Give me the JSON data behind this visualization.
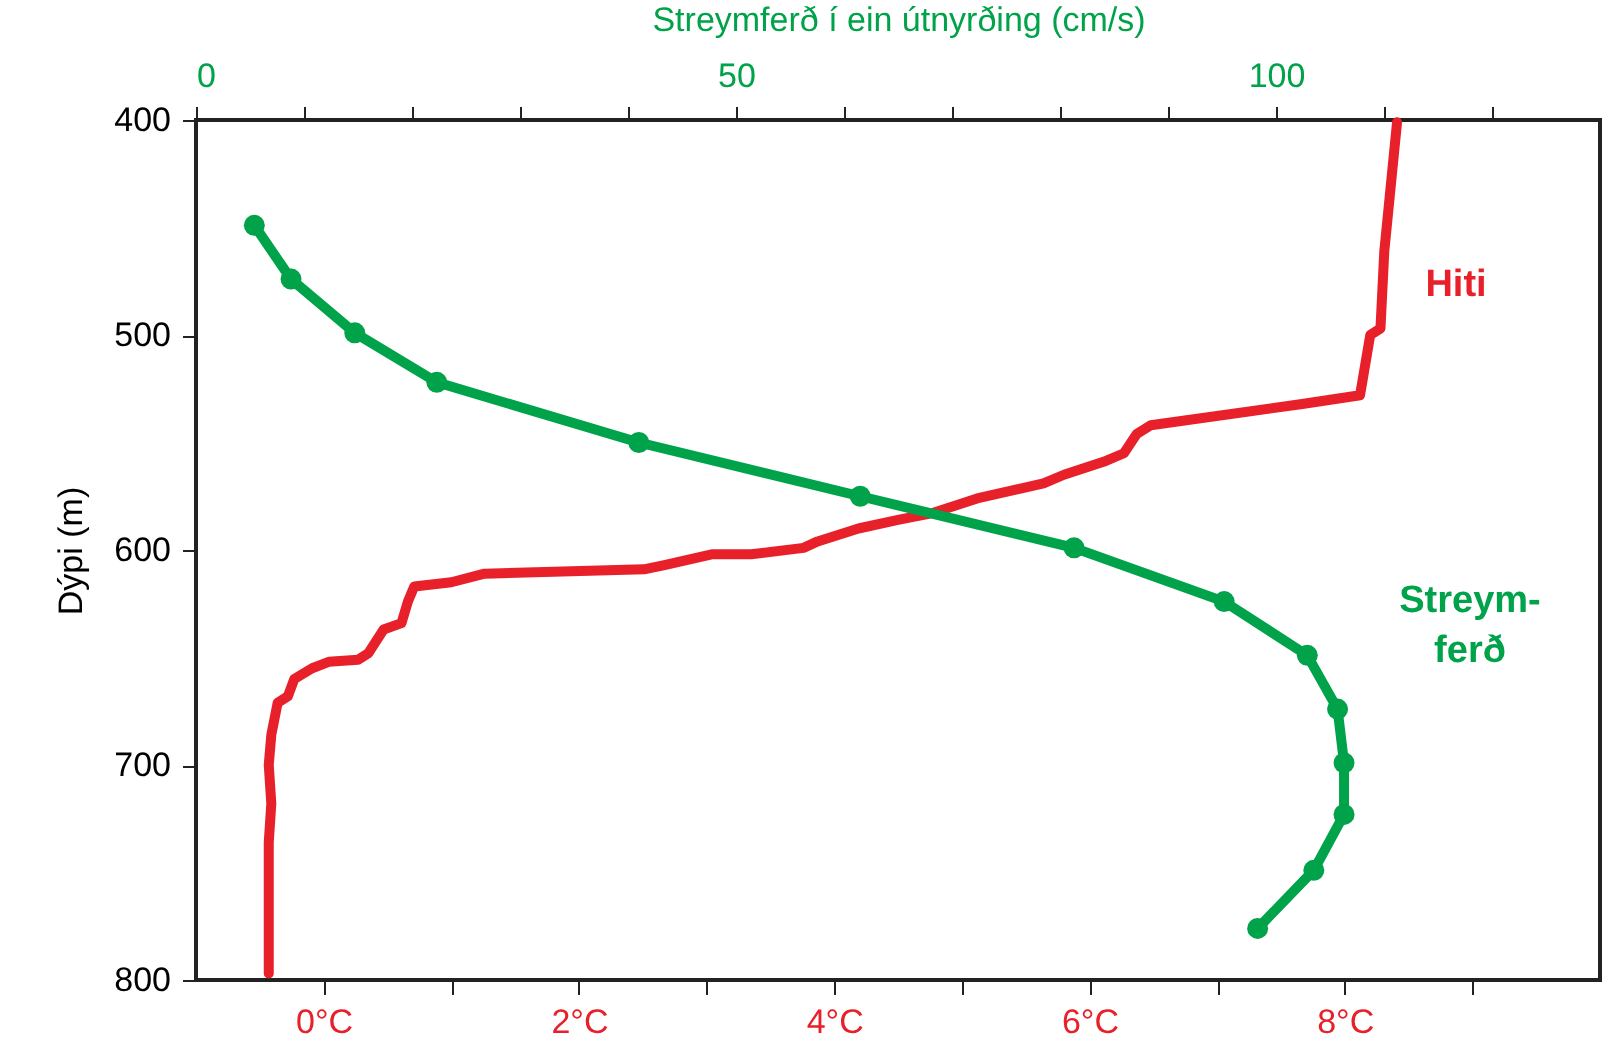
{
  "chart_data": {
    "type": "line",
    "ylabel": "Dýpi (m)",
    "x2label": "Streymferð í ein útnyrðing (cm/s)",
    "ylim": [
      800,
      400
    ],
    "yticks": [
      400,
      500,
      600,
      700,
      800
    ],
    "xlim": [
      -1,
      10
    ],
    "xticks": [
      {
        "value": 0,
        "label": "0°C"
      },
      {
        "value": 1,
        "label": null
      },
      {
        "value": 2,
        "label": "2°C"
      },
      {
        "value": 3,
        "label": null
      },
      {
        "value": 4,
        "label": "4°C"
      },
      {
        "value": 5,
        "label": null
      },
      {
        "value": 6,
        "label": "6°C"
      },
      {
        "value": 7,
        "label": null
      },
      {
        "value": 8,
        "label": "8°C"
      },
      {
        "value": 9,
        "label": null
      }
    ],
    "x2lim": [
      0,
      130
    ],
    "x2ticks": [
      0,
      {
        "value": 10,
        "label": null
      },
      {
        "value": 20,
        "label": null
      },
      {
        "value": 30,
        "label": null
      },
      {
        "value": 40,
        "label": null
      },
      50,
      {
        "value": 60,
        "label": null
      },
      {
        "value": 70,
        "label": null
      },
      {
        "value": 80,
        "label": null
      },
      {
        "value": 90,
        "label": null
      },
      100,
      {
        "value": 110,
        "label": null
      },
      {
        "value": 120,
        "label": null
      }
    ],
    "grid": false,
    "legend": false,
    "line_style": "solid",
    "series": [
      {
        "name": "Hiti",
        "color": "#e8202a",
        "marker": "none",
        "x": [
          8.41,
          8.31,
          8.28,
          8.2,
          8.12,
          7.68,
          6.48,
          6.37,
          6.27,
          6.11,
          5.8,
          5.64,
          5.12,
          4.76,
          4.5,
          4.19,
          3.87,
          3.76,
          3.35,
          3.04,
          2.67,
          2.51,
          1.26,
          1.0,
          0.71,
          0.66,
          0.61,
          0.47,
          0.35,
          0.27,
          0.04,
          -0.09,
          -0.23,
          -0.28,
          -0.36,
          -0.41,
          -0.43,
          -0.41,
          -0.43,
          -0.43
        ],
        "values": [
          401,
          461,
          497,
          500,
          528,
          532,
          542,
          546,
          555,
          559,
          565,
          569,
          576,
          583,
          586,
          590,
          596,
          599,
          602,
          602,
          607,
          609,
          611,
          615,
          617,
          624,
          634,
          637,
          648,
          651,
          652,
          655,
          660,
          668,
          671,
          686,
          700,
          718,
          736,
          797
        ]
      },
      {
        "name": "Streym-\nferð",
        "color": "#00a24a",
        "axis": "x2",
        "marker": "circle",
        "x": [
          5.4,
          8.8,
          14.7,
          22.3,
          41.0,
          61.5,
          81.3,
          95.2,
          102.9,
          105.7,
          106.3,
          106.3,
          103.5,
          98.3
        ],
        "values": [
          449,
          474,
          499,
          522,
          550,
          575,
          599,
          624,
          649,
          674,
          699,
          723,
          749,
          776
        ]
      }
    ]
  }
}
